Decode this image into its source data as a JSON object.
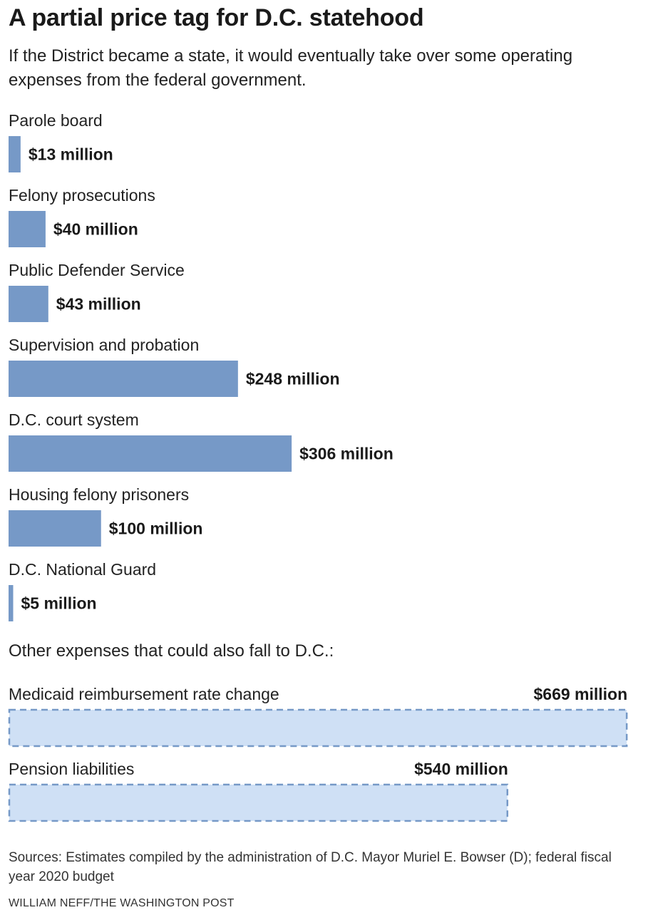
{
  "title": "A partial price tag for D.C. statehood",
  "subtitle": "If the District became a state, it would eventually take over some operating expenses from the federal government.",
  "other_heading": "Other expenses that could also fall to D.C.:",
  "source": "Sources: Estimates compiled by the administration of D.C. Mayor Muriel E. Bowser (D); federal fiscal year 2020 budget",
  "credit": "WILLIAM NEFF/THE WASHINGTON POST",
  "colors": {
    "bar": "#7699c7",
    "dashed_fill": "#cfe0f5",
    "dashed_stroke": "#7699c7"
  },
  "chart_data": [
    {
      "type": "bar",
      "orientation": "horizontal",
      "unit": "million dollars",
      "categories": [
        "Parole board",
        "Felony prosecutions",
        "Public Defender Service",
        "Supervision and probation",
        "D.C. court system",
        "Housing felony prisoners",
        "D.C. National Guard"
      ],
      "values": [
        13,
        40,
        43,
        248,
        306,
        100,
        5
      ],
      "value_labels": [
        "$13 million",
        "$40 million",
        "$43 million",
        "$248 million",
        "$306 million",
        "$100 million",
        "$5 million"
      ]
    },
    {
      "type": "bar",
      "orientation": "horizontal",
      "style": "dashed",
      "unit": "million dollars",
      "categories": [
        "Medicaid reimbursement rate change",
        "Pension liabilities"
      ],
      "values": [
        669,
        540
      ],
      "value_labels": [
        "$669 million",
        "$540 million"
      ]
    }
  ]
}
